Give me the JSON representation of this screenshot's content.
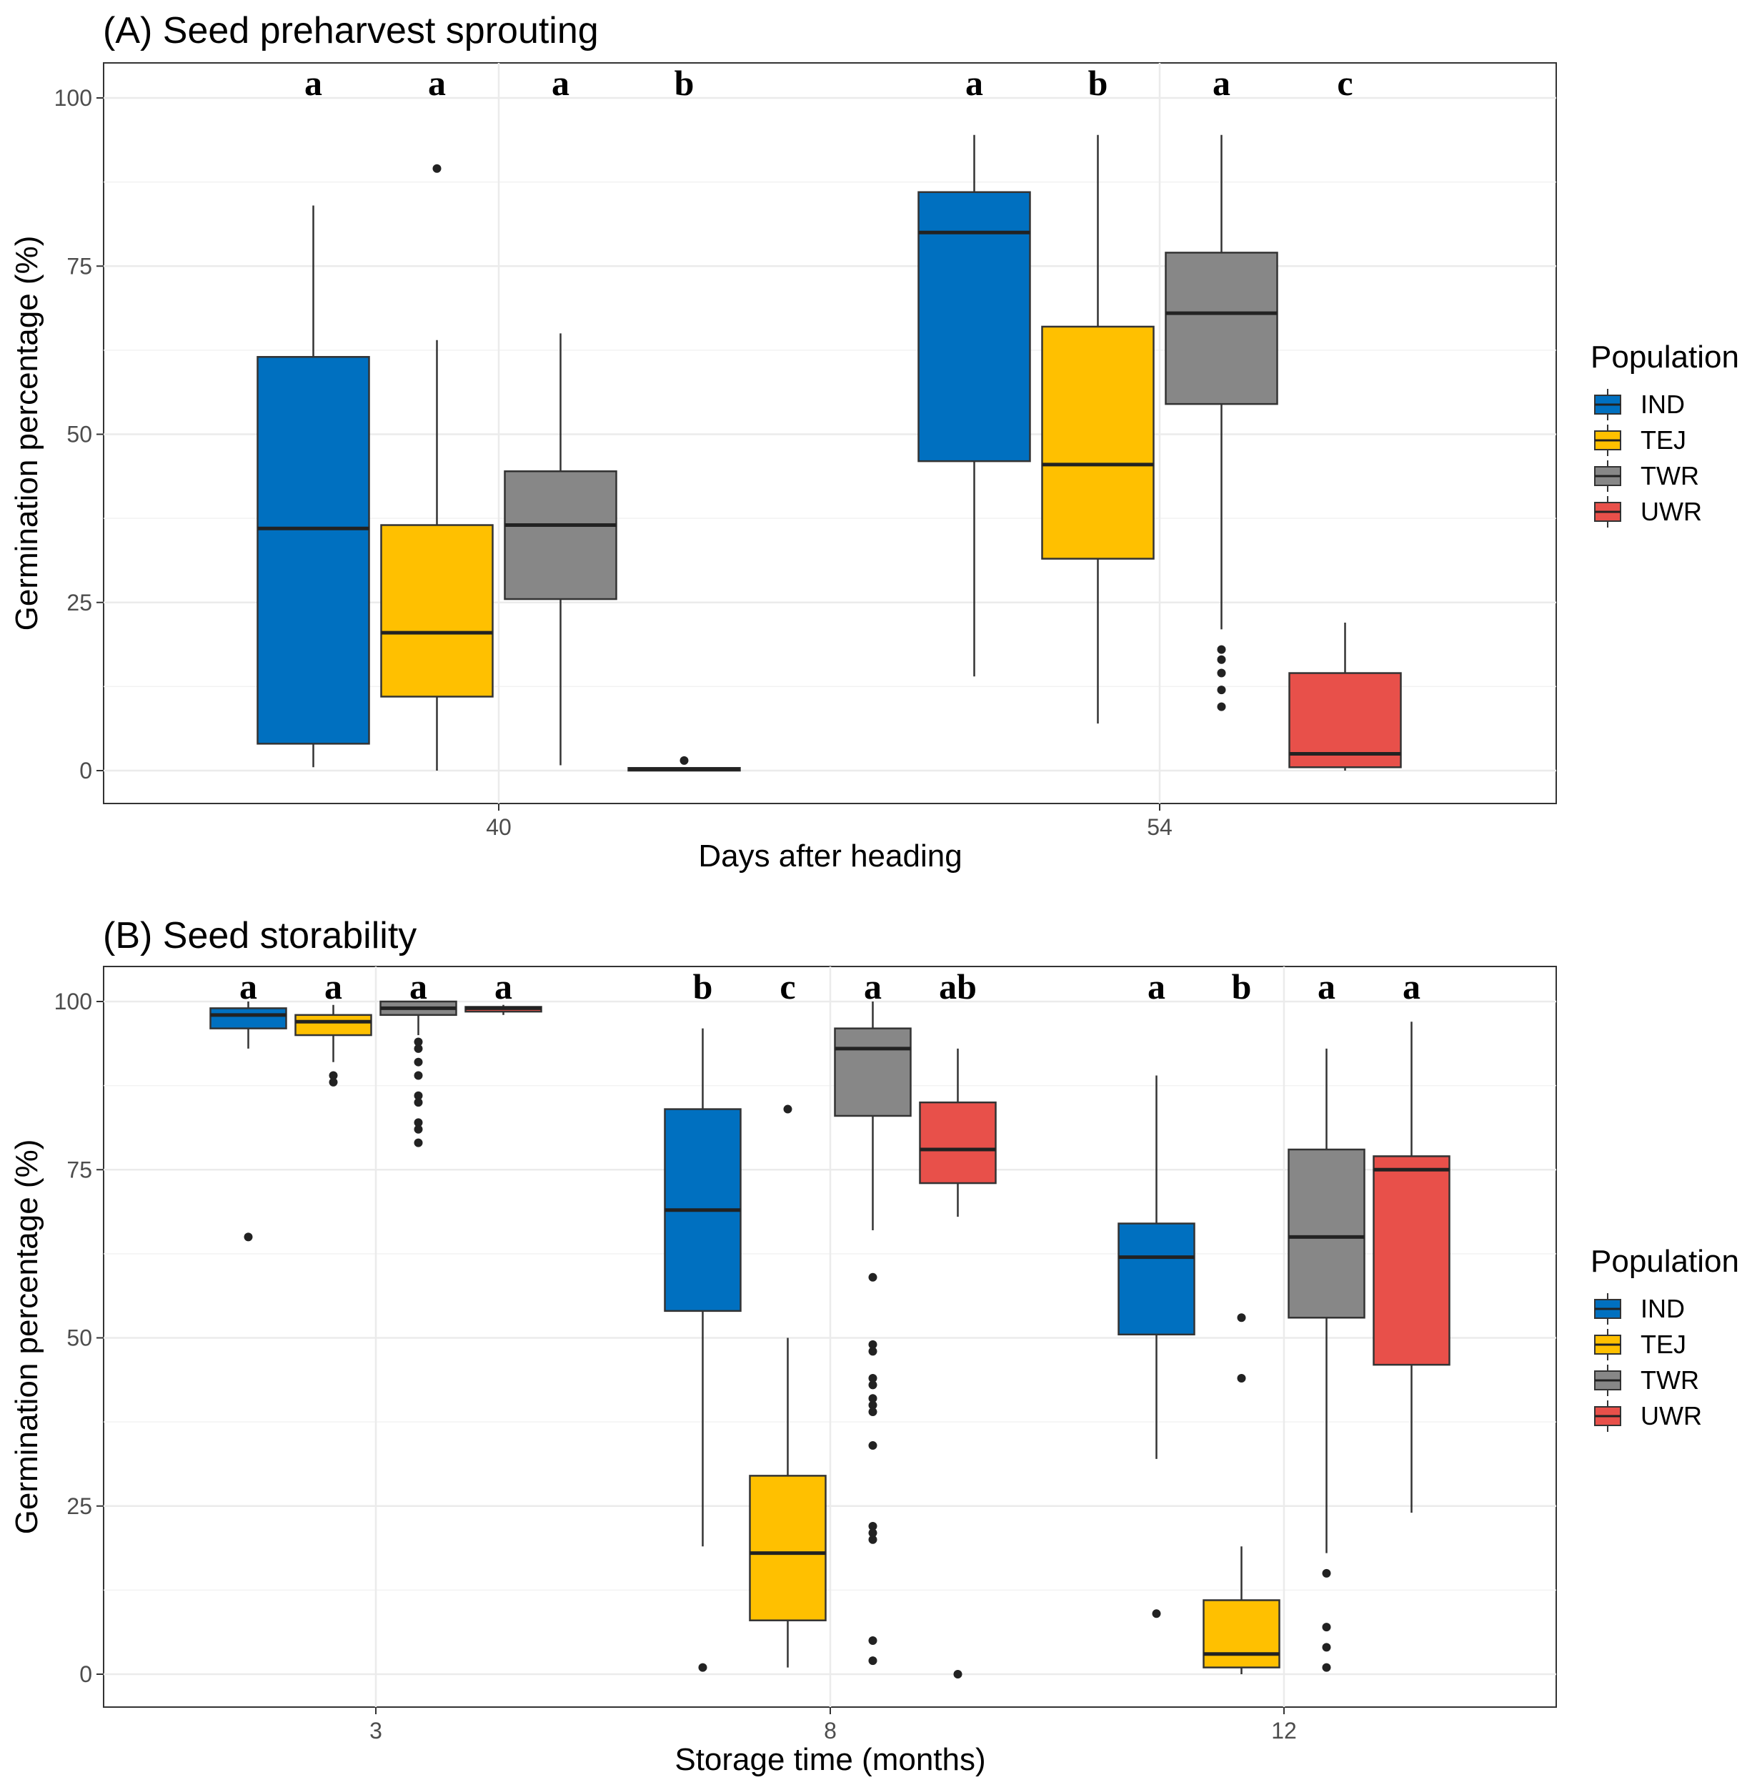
{
  "colors": {
    "IND": "#0070C0",
    "TEJ": "#FFC000",
    "TWR": "#878787",
    "UWR": "#E8504A"
  },
  "legend": {
    "title": "Population",
    "entries": [
      "IND",
      "TEJ",
      "TWR",
      "UWR"
    ]
  },
  "chart_data": [
    {
      "type": "box",
      "title": "(A) Seed preharvest sprouting",
      "xlabel": "Days after heading",
      "ylabel": "Germination percentage (%)",
      "ylim": [
        -5,
        105
      ],
      "yticks": [
        0,
        25,
        50,
        75,
        100
      ],
      "grid": true,
      "legend_position": "right",
      "categories": [
        "40",
        "54"
      ],
      "series_order": [
        "IND",
        "TEJ",
        "TWR",
        "UWR"
      ],
      "groups": [
        {
          "category": "40",
          "boxes": [
            {
              "population": "IND",
              "min": 0.5,
              "q1": 4,
              "median": 36,
              "q3": 61.5,
              "max": 84,
              "outliers": [],
              "letter": "a"
            },
            {
              "population": "TEJ",
              "min": 0,
              "q1": 11,
              "median": 20.5,
              "q3": 36.5,
              "max": 64,
              "outliers": [
                89.5
              ],
              "letter": "a"
            },
            {
              "population": "TWR",
              "min": 0.8,
              "q1": 25.5,
              "median": 36.5,
              "q3": 44.5,
              "max": 65,
              "outliers": [],
              "letter": "a"
            },
            {
              "population": "UWR",
              "min": 0,
              "q1": 0,
              "median": 0.2,
              "q3": 0.4,
              "max": 0.4,
              "outliers": [
                1.5
              ],
              "letter": "b"
            }
          ]
        },
        {
          "category": "54",
          "boxes": [
            {
              "population": "IND",
              "min": 14,
              "q1": 46,
              "median": 80,
              "q3": 86,
              "max": 94.5,
              "outliers": [],
              "letter": "a"
            },
            {
              "population": "TEJ",
              "min": 7,
              "q1": 31.5,
              "median": 45.5,
              "q3": 66,
              "max": 94.5,
              "outliers": [],
              "letter": "b"
            },
            {
              "population": "TWR",
              "min": 21,
              "q1": 54.5,
              "median": 68,
              "q3": 77,
              "max": 94.5,
              "outliers": [
                18,
                16.5,
                14.5,
                12,
                9.5
              ],
              "letter": "a"
            },
            {
              "population": "UWR",
              "min": 0,
              "q1": 0.5,
              "median": 2.5,
              "q3": 14.5,
              "max": 22,
              "outliers": [],
              "letter": "c"
            }
          ]
        }
      ]
    },
    {
      "type": "box",
      "title": "(B) Seed storability",
      "xlabel": "Storage time (months)",
      "ylabel": "Germination percentage (%)",
      "ylim": [
        -5,
        105
      ],
      "yticks": [
        0,
        25,
        50,
        75,
        100
      ],
      "grid": true,
      "legend_position": "right",
      "categories": [
        "3",
        "8",
        "12"
      ],
      "series_order": [
        "IND",
        "TEJ",
        "TWR",
        "UWR"
      ],
      "groups": [
        {
          "category": "3",
          "boxes": [
            {
              "population": "IND",
              "min": 93,
              "q1": 96,
              "median": 98,
              "q3": 99,
              "max": 100,
              "outliers": [
                65
              ],
              "letter": "a"
            },
            {
              "population": "TEJ",
              "min": 91,
              "q1": 95,
              "median": 97,
              "q3": 98,
              "max": 99.5,
              "outliers": [
                89,
                88
              ],
              "letter": "a"
            },
            {
              "population": "TWR",
              "min": 95,
              "q1": 98,
              "median": 99,
              "q3": 100,
              "max": 100,
              "outliers": [
                94,
                93,
                91,
                89,
                86,
                85,
                82,
                81,
                79
              ],
              "letter": "a"
            },
            {
              "population": "UWR",
              "min": 98,
              "q1": 98.5,
              "median": 99,
              "q3": 99.2,
              "max": 99.5,
              "outliers": [],
              "letter": "a"
            }
          ]
        },
        {
          "category": "8",
          "boxes": [
            {
              "population": "IND",
              "min": 19,
              "q1": 54,
              "median": 69,
              "q3": 84,
              "max": 96,
              "outliers": [
                1
              ],
              "letter": "b"
            },
            {
              "population": "TEJ",
              "min": 1,
              "q1": 8,
              "median": 18,
              "q3": 29.5,
              "max": 50,
              "outliers": [
                84
              ],
              "letter": "c"
            },
            {
              "population": "TWR",
              "min": 66,
              "q1": 83,
              "median": 93,
              "q3": 96,
              "max": 100,
              "outliers": [
                59,
                49,
                48,
                44,
                43,
                41,
                40,
                39,
                34,
                22,
                21,
                20,
                5,
                2
              ],
              "letter": "a"
            },
            {
              "population": "UWR",
              "min": 68,
              "q1": 73,
              "median": 78,
              "q3": 85,
              "max": 93,
              "outliers": [
                0
              ],
              "letter": "ab"
            }
          ]
        },
        {
          "category": "12",
          "boxes": [
            {
              "population": "IND",
              "min": 32,
              "q1": 50.5,
              "median": 62,
              "q3": 67,
              "max": 89,
              "outliers": [
                9
              ],
              "letter": "a"
            },
            {
              "population": "TEJ",
              "min": 0,
              "q1": 1,
              "median": 3,
              "q3": 11,
              "max": 19,
              "outliers": [
                53,
                44
              ],
              "letter": "b"
            },
            {
              "population": "TWR",
              "min": 18,
              "q1": 53,
              "median": 65,
              "q3": 78,
              "max": 93,
              "outliers": [
                15,
                7,
                4,
                1
              ],
              "letter": "a"
            },
            {
              "population": "UWR",
              "min": 24,
              "q1": 46,
              "median": 75,
              "q3": 77,
              "max": 97,
              "outliers": [],
              "letter": "a"
            }
          ]
        }
      ]
    }
  ]
}
